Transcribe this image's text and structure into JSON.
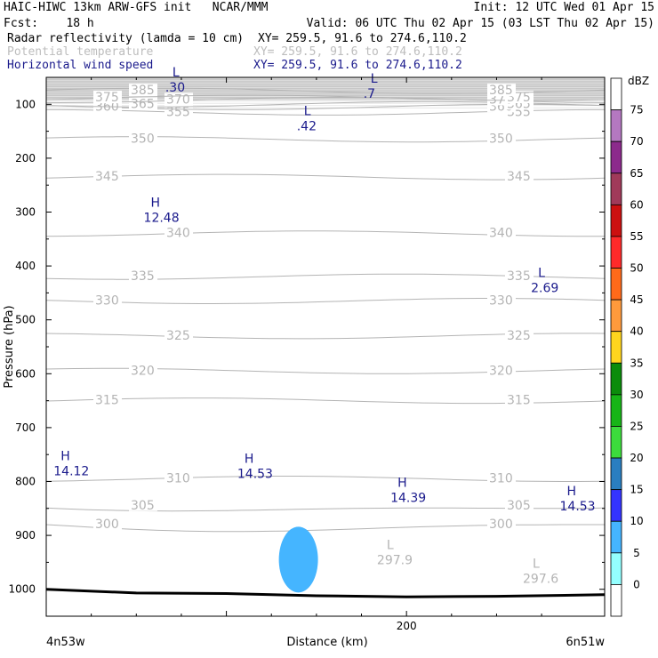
{
  "header": {
    "left1": "HAIC-HIWC 13km ARW-GFS init   NCAR/MMM",
    "right1": "Init: 12 UTC Wed 01 Apr 15",
    "left2": "Fcst:    18 h",
    "right2": "Valid: 06 UTC Thu 02 Apr 15 (03 LST Thu 02 Apr 15)",
    "fields": [
      {
        "name": "Radar reflectivity (lamda = 10 cm)",
        "xy": "XY= 259.5, 91.6 to 274.6,110.2",
        "color": "#000000"
      },
      {
        "name": "Potential temperature",
        "xy": "XY= 259.5, 91.6 to 274.6,110.2",
        "color": "#bdbdbd"
      },
      {
        "name": "Horizontal wind speed",
        "xy": "XY= 259.5, 91.6 to 274.6,110.2",
        "color": "#1a1a8c"
      }
    ]
  },
  "chart_data": {
    "type": "heatmap",
    "ylabel": "Pressure (hPa)",
    "xlabel": "Distance (km)",
    "yticks": [
      100,
      200,
      300,
      400,
      500,
      600,
      700,
      800,
      900,
      1000
    ],
    "ylim": [
      1050,
      50
    ],
    "xticks": [
      100,
      200
    ],
    "xtick_labels": [
      "",
      "200"
    ],
    "xlim": [
      0,
      310
    ],
    "x_left_label": "4n53w",
    "x_right_label": "6n51w",
    "theta_contours": [
      {
        "label": "300",
        "p": 880
      },
      {
        "label": "305",
        "p": 845
      },
      {
        "label": "310",
        "p": 795
      },
      {
        "label": "315",
        "p": 650
      },
      {
        "label": "320",
        "p": 595
      },
      {
        "label": "325",
        "p": 530
      },
      {
        "label": "330",
        "p": 465
      },
      {
        "label": "335",
        "p": 420
      },
      {
        "label": "340",
        "p": 340
      },
      {
        "label": "345",
        "p": 235
      },
      {
        "label": "350",
        "p": 165
      },
      {
        "label": "355",
        "p": 115
      },
      {
        "label": "360",
        "p": 105
      },
      {
        "label": "365",
        "p": 100
      },
      {
        "label": "370",
        "p": 92
      },
      {
        "label": "375",
        "p": 88
      },
      {
        "label": "385",
        "p": 75
      }
    ],
    "wind_extrema": [
      {
        "kind": "L",
        "value": ".30",
        "x": 72,
        "p": 68
      },
      {
        "kind": "L",
        "value": ".7",
        "x": 182,
        "p": 80
      },
      {
        "kind": "L",
        "value": ".42",
        "x": 145,
        "p": 140
      },
      {
        "kind": "H",
        "value": "12.48",
        "x": 60,
        "p": 310
      },
      {
        "kind": "L",
        "value": "2.69",
        "x": 275,
        "p": 440
      },
      {
        "kind": "H",
        "value": "14.12",
        "x": 10,
        "p": 780
      },
      {
        "kind": "H",
        "value": "14.53",
        "x": 112,
        "p": 785
      },
      {
        "kind": "H",
        "value": "14.39",
        "x": 197,
        "p": 830
      },
      {
        "kind": "H",
        "value": "14.53",
        "x": 291,
        "p": 845
      }
    ],
    "theta_extrema": [
      {
        "kind": "L",
        "value": "297.9",
        "x": 191,
        "p": 945
      },
      {
        "kind": "L",
        "value": "297.6",
        "x": 272,
        "p": 980
      }
    ],
    "reflectivity_cells": [
      {
        "dbz": 10,
        "x_center": 140,
        "p_center": 945
      }
    ],
    "surface_pressure": [
      [
        0,
        1000
      ],
      [
        50,
        1007
      ],
      [
        100,
        1008
      ],
      [
        150,
        1012
      ],
      [
        200,
        1014
      ],
      [
        250,
        1013
      ],
      [
        310,
        1010
      ]
    ],
    "colorbar": {
      "unit": "dBZ",
      "levels": [
        "0",
        "5",
        "10",
        "15",
        "20",
        "25",
        "30",
        "35",
        "40",
        "45",
        "50",
        "55",
        "60",
        "65",
        "70",
        "75"
      ],
      "colors": [
        "#ffffff",
        "#94ffff",
        "#45b5ff",
        "#3434ff",
        "#2a7ec0",
        "#3cdc3c",
        "#17b517",
        "#0b8c0b",
        "#ffd51e",
        "#ff9a3c",
        "#ff6a1a",
        "#ff2a2a",
        "#cc1010",
        "#a03a5a",
        "#8c2a8c",
        "#b478c0"
      ]
    }
  }
}
